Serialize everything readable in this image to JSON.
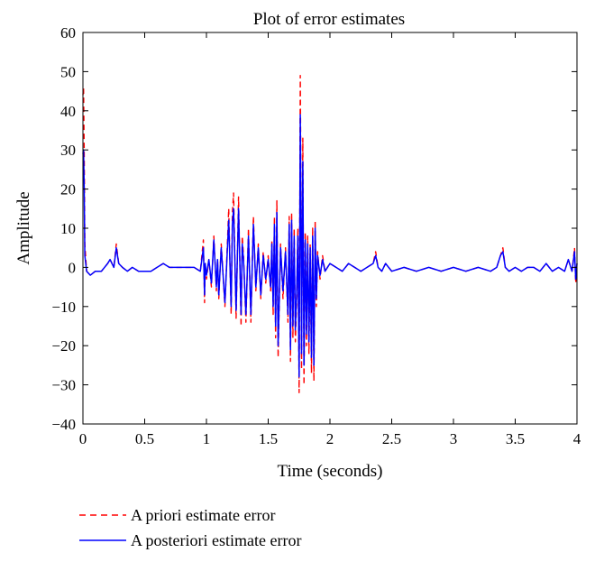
{
  "chart_data": {
    "type": "line",
    "title": "Plot of error estimates",
    "xlabel": "Time (seconds)",
    "ylabel": "Amplitude",
    "xlim": [
      0,
      4
    ],
    "ylim": [
      -40,
      60
    ],
    "xticks": [
      "0",
      "0.5",
      "1",
      "1.5",
      "2",
      "2.5",
      "3",
      "3.5",
      "4"
    ],
    "yticks": [
      "60",
      "50",
      "40",
      "30",
      "20",
      "10",
      "0",
      "−10",
      "−20",
      "−30",
      "−40"
    ],
    "grid": false,
    "legend_position": "below",
    "series": [
      {
        "name": "A priori estimate error",
        "color": "#ff0000",
        "style": "dashed",
        "x": [
          0,
          0.005,
          0.01,
          0.015,
          0.03,
          0.06,
          0.1,
          0.15,
          0.2,
          0.22,
          0.25,
          0.27,
          0.29,
          0.32,
          0.36,
          0.4,
          0.45,
          0.5,
          0.55,
          0.6,
          0.65,
          0.7,
          0.75,
          0.8,
          0.85,
          0.9,
          0.95,
          0.975,
          0.985,
          0.99,
          1.0,
          1.02,
          1.04,
          1.06,
          1.08,
          1.09,
          1.1,
          1.12,
          1.15,
          1.18,
          1.2,
          1.21,
          1.22,
          1.24,
          1.26,
          1.28,
          1.29,
          1.3,
          1.32,
          1.34,
          1.36,
          1.38,
          1.4,
          1.42,
          1.44,
          1.46,
          1.48,
          1.5,
          1.52,
          1.53,
          1.54,
          1.55,
          1.56,
          1.57,
          1.58,
          1.6,
          1.62,
          1.64,
          1.66,
          1.67,
          1.68,
          1.69,
          1.7,
          1.71,
          1.72,
          1.73,
          1.74,
          1.75,
          1.76,
          1.765,
          1.77,
          1.78,
          1.79,
          1.8,
          1.81,
          1.82,
          1.83,
          1.84,
          1.85,
          1.86,
          1.87,
          1.88,
          1.89,
          1.9,
          1.92,
          1.94,
          1.96,
          2.0,
          2.05,
          2.1,
          2.15,
          2.2,
          2.25,
          2.3,
          2.35,
          2.37,
          2.39,
          2.42,
          2.45,
          2.5,
          2.6,
          2.7,
          2.8,
          2.9,
          3.0,
          3.1,
          3.2,
          3.3,
          3.35,
          3.38,
          3.4,
          3.42,
          3.45,
          3.5,
          3.55,
          3.6,
          3.65,
          3.7,
          3.75,
          3.8,
          3.85,
          3.9,
          3.93,
          3.96,
          3.98,
          3.99,
          4.0
        ],
        "values": [
          44,
          46,
          30,
          6,
          -1,
          -2,
          -1,
          -1,
          1,
          2,
          0,
          6,
          1,
          0,
          -1,
          0,
          -1,
          -1,
          -1,
          0,
          1,
          0,
          0,
          0,
          0,
          0,
          -1,
          7,
          -9,
          1,
          -3,
          2,
          -5,
          8,
          -6,
          2,
          -8,
          6,
          -10,
          15,
          -12,
          14,
          19,
          -13,
          18,
          -15,
          8,
          3,
          -14,
          10,
          -14,
          13,
          -6,
          6,
          -8,
          4,
          -4,
          3,
          -6,
          7,
          -12,
          13,
          -18,
          17,
          -23,
          6,
          -8,
          5,
          -14,
          13,
          -24,
          14,
          -18,
          10,
          -19,
          -9,
          10,
          -32,
          49,
          20,
          -26,
          33,
          -30,
          9,
          -20,
          8,
          -22,
          6,
          -27,
          10,
          -29,
          12,
          -10,
          4,
          -3,
          3,
          -1,
          1,
          0,
          -1,
          1,
          0,
          -1,
          0,
          1,
          4,
          0,
          -1,
          1,
          -1,
          0,
          -1,
          0,
          -1,
          0,
          -1,
          0,
          -1,
          0,
          3,
          5,
          0,
          -1,
          0,
          -1,
          0,
          0,
          -1,
          1,
          -1,
          0,
          -1,
          2,
          -1,
          5,
          -4,
          1
        ]
      },
      {
        "name": "A posteriori estimate error",
        "color": "#0000ff",
        "style": "solid",
        "x": [
          0,
          0.005,
          0.01,
          0.015,
          0.03,
          0.06,
          0.1,
          0.15,
          0.2,
          0.22,
          0.25,
          0.27,
          0.29,
          0.32,
          0.36,
          0.4,
          0.45,
          0.5,
          0.55,
          0.6,
          0.65,
          0.7,
          0.75,
          0.8,
          0.85,
          0.9,
          0.95,
          0.975,
          0.985,
          0.99,
          1.0,
          1.02,
          1.04,
          1.06,
          1.08,
          1.09,
          1.1,
          1.12,
          1.15,
          1.18,
          1.2,
          1.21,
          1.22,
          1.24,
          1.26,
          1.28,
          1.29,
          1.3,
          1.32,
          1.34,
          1.36,
          1.38,
          1.4,
          1.42,
          1.44,
          1.46,
          1.48,
          1.5,
          1.52,
          1.53,
          1.54,
          1.55,
          1.56,
          1.57,
          1.58,
          1.6,
          1.62,
          1.64,
          1.66,
          1.67,
          1.68,
          1.69,
          1.7,
          1.71,
          1.72,
          1.73,
          1.74,
          1.75,
          1.76,
          1.765,
          1.77,
          1.78,
          1.79,
          1.8,
          1.81,
          1.82,
          1.83,
          1.84,
          1.85,
          1.86,
          1.87,
          1.88,
          1.89,
          1.9,
          1.92,
          1.94,
          1.96,
          2.0,
          2.05,
          2.1,
          2.15,
          2.2,
          2.25,
          2.3,
          2.35,
          2.37,
          2.39,
          2.42,
          2.45,
          2.5,
          2.6,
          2.7,
          2.8,
          2.9,
          3.0,
          3.1,
          3.2,
          3.3,
          3.35,
          3.38,
          3.4,
          3.42,
          3.45,
          3.5,
          3.55,
          3.6,
          3.65,
          3.7,
          3.75,
          3.8,
          3.85,
          3.9,
          3.93,
          3.96,
          3.98,
          3.99,
          4.0
        ],
        "values": [
          29,
          30,
          20,
          3,
          -1,
          -2,
          -1,
          -1,
          1,
          2,
          0,
          5,
          1,
          0,
          -1,
          0,
          -1,
          -1,
          -1,
          0,
          1,
          0,
          0,
          0,
          0,
          0,
          -1,
          5,
          -7,
          1,
          -2,
          2,
          -4,
          7,
          -5,
          2,
          -7,
          5,
          -9,
          12,
          -10,
          11,
          15,
          -11,
          15,
          -12,
          6,
          2,
          -12,
          8,
          -12,
          11,
          -5,
          5,
          -7,
          3,
          -3,
          2,
          -5,
          6,
          -10,
          11,
          -15,
          14,
          -20,
          5,
          -6,
          4,
          -12,
          11,
          -21,
          12,
          -15,
          8,
          -16,
          -7,
          8,
          -28,
          39,
          16,
          -22,
          27,
          -25,
          7,
          -17,
          6,
          -19,
          5,
          -23,
          8,
          -25,
          10,
          -8,
          3,
          -2,
          2,
          -1,
          1,
          0,
          -1,
          1,
          0,
          -1,
          0,
          1,
          3,
          0,
          -1,
          1,
          -1,
          0,
          -1,
          0,
          -1,
          0,
          -1,
          0,
          -1,
          0,
          3,
          4,
          0,
          -1,
          0,
          -1,
          0,
          0,
          -1,
          1,
          -1,
          0,
          -1,
          2,
          -1,
          4,
          -3,
          1
        ]
      }
    ]
  }
}
